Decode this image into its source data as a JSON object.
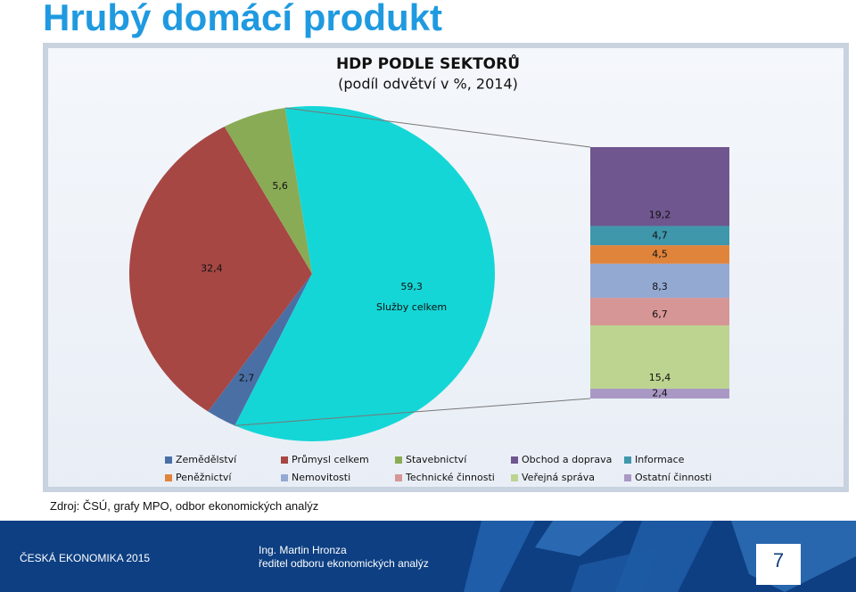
{
  "slide": {
    "title": "Hrubý domácí produkt",
    "source": "Zdroj: ČSÚ, grafy MPO, odbor ekonomických analýz",
    "footer_left": "ČESKÁ EKONOMIKA 2015",
    "author": "Ing. Martin Hronza",
    "author_role": "ředitel odboru ekonomických analýz",
    "page": "7"
  },
  "chart_data": {
    "type": "pie",
    "title": "HDP PODLE SEKTORŮ",
    "subtitle": "(podíl odvětví v %, 2014)",
    "categories": [
      "Zemědělství",
      "Průmysl celkem",
      "Stavebnictví",
      "Služby celkem"
    ],
    "values": [
      2.7,
      32.4,
      5.6,
      59.3
    ],
    "value_labels": [
      "2,7",
      "32,4",
      "5,6",
      "59,3"
    ],
    "colors": [
      "#4a6fa5",
      "#a64744",
      "#8aab55",
      "#15d6d6"
    ],
    "breakdown": {
      "categories": [
        "Obchod a doprava",
        "Informace",
        "Peněžnictví",
        "Nemovitosti",
        "Technické činnosti",
        "Veřejná správa",
        "Ostatní činnosti"
      ],
      "values": [
        19.2,
        4.7,
        4.5,
        8.3,
        6.7,
        15.4,
        2.4
      ],
      "value_labels": [
        "19,2",
        "4,7",
        "4,5",
        "8,3",
        "6,7",
        "15,4",
        "2,4"
      ],
      "colors": [
        "#6f568f",
        "#3f97ab",
        "#e0843c",
        "#94a9d2",
        "#d69695",
        "#bcd490",
        "#a998c4"
      ]
    }
  }
}
